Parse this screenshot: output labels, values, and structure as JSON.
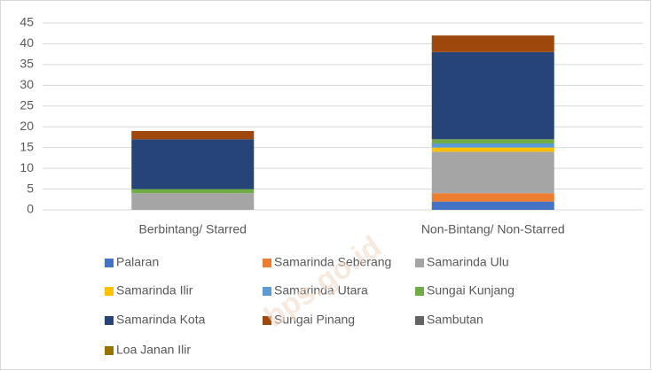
{
  "chart_data": {
    "type": "stacked_bar",
    "categories": [
      "Berbintang/ Starred",
      "Non-Bintang/ Non-Starred"
    ],
    "series": [
      {
        "name": "Palaran",
        "color": "#4472c4",
        "values": [
          0,
          2
        ]
      },
      {
        "name": "Samarinda Seberang",
        "color": "#ed7d31",
        "values": [
          0,
          2
        ]
      },
      {
        "name": "Samarinda Ulu",
        "color": "#a5a5a5",
        "values": [
          4,
          10
        ]
      },
      {
        "name": "Samarinda Ilir",
        "color": "#ffc000",
        "values": [
          0,
          1
        ]
      },
      {
        "name": "Samarinda Utara",
        "color": "#5b9bd5",
        "values": [
          0,
          1
        ]
      },
      {
        "name": "Sungai Kunjang",
        "color": "#70ad47",
        "values": [
          1,
          1
        ]
      },
      {
        "name": "Samarinda Kota",
        "color": "#264478",
        "values": [
          12,
          21
        ]
      },
      {
        "name": "Sungai Pinang",
        "color": "#9e480e",
        "values": [
          2,
          4
        ]
      },
      {
        "name": "Sambutan",
        "color": "#636363",
        "values": [
          0,
          0
        ]
      },
      {
        "name": "Loa Janan Ilir",
        "color": "#997300",
        "values": [
          0,
          0
        ]
      }
    ],
    "ylim": [
      0,
      45
    ],
    "yticks": [
      0,
      5,
      10,
      15,
      20,
      25,
      30,
      35,
      40,
      45
    ],
    "grid": true,
    "legend": "bottom",
    "watermark": "bps.go.id"
  }
}
